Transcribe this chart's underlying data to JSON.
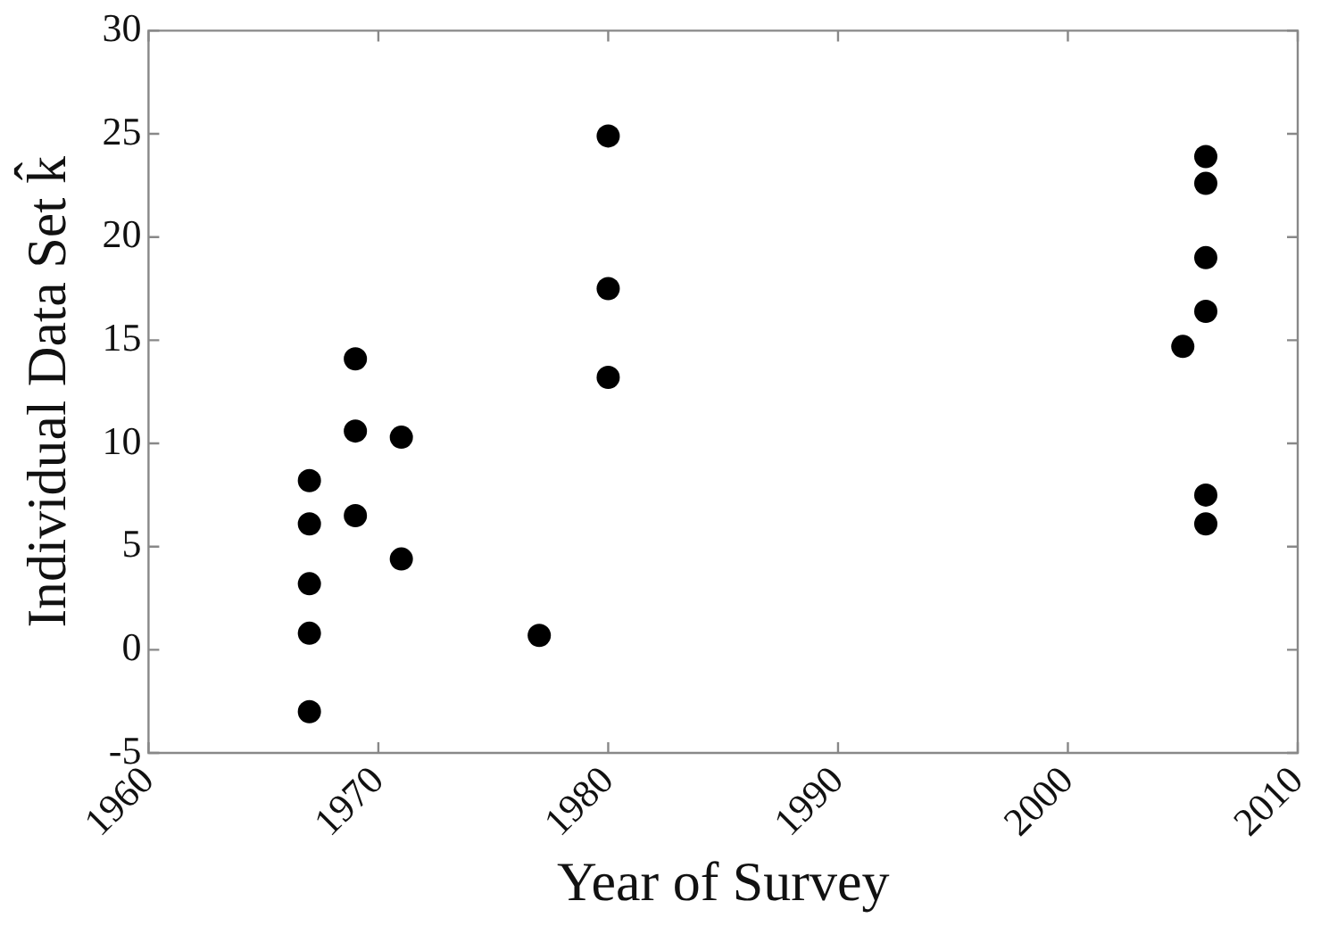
{
  "chart_data": {
    "type": "scatter",
    "xlabel": "Year of Survey",
    "ylabel": "Individual Data Set k̂",
    "x": [
      1967,
      1967,
      1967,
      1967,
      1967,
      1969,
      1969,
      1969,
      1971,
      1971,
      1977,
      1980,
      1980,
      1980,
      2005,
      2006,
      2006,
      2006,
      2006,
      2006,
      2006
    ],
    "series": [
      {
        "color": "#000000",
        "values": [
          8.2,
          6.1,
          3.2,
          0.8,
          -3.0,
          14.1,
          10.6,
          6.5,
          10.3,
          4.4,
          0.7,
          24.9,
          17.5,
          13.2,
          14.7,
          23.9,
          22.6,
          19.0,
          16.4,
          7.5,
          6.1
        ]
      }
    ],
    "xlim": [
      1960,
      2010
    ],
    "xticks": [
      1960,
      1970,
      1980,
      1990,
      2000,
      2010
    ],
    "ylim": [
      -5,
      30
    ],
    "yticks": [
      -5,
      0,
      5,
      10,
      15,
      20,
      25,
      30
    ],
    "grid": false,
    "legend": false,
    "marker": "circle"
  }
}
